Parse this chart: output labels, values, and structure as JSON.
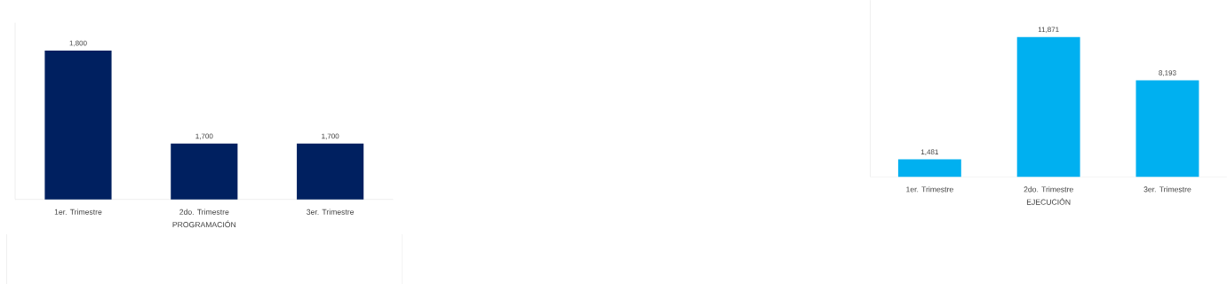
{
  "chart_data": [
    {
      "type": "bar",
      "xlabel": "PROGRAMACIÓN",
      "categories": [
        "1er. Trimestre",
        "2do. Trimestre",
        "3er. Trimestre"
      ],
      "values": [
        1800,
        1700,
        1700
      ],
      "value_labels": [
        "1,800",
        "1,700",
        "1,700"
      ],
      "color": "#002060",
      "ylim": [
        1640,
        1830
      ]
    },
    {
      "type": "bar",
      "xlabel": "EJECUCIÓN",
      "categories": [
        "1er. Trimestre",
        "2do. Trimestre",
        "3er. Trimestre"
      ],
      "values": [
        1481,
        11871,
        8193
      ],
      "value_labels": [
        "1,481",
        "11,871",
        "8,193"
      ],
      "color": "#00b0f0",
      "ylim": [
        0,
        15000
      ]
    }
  ]
}
